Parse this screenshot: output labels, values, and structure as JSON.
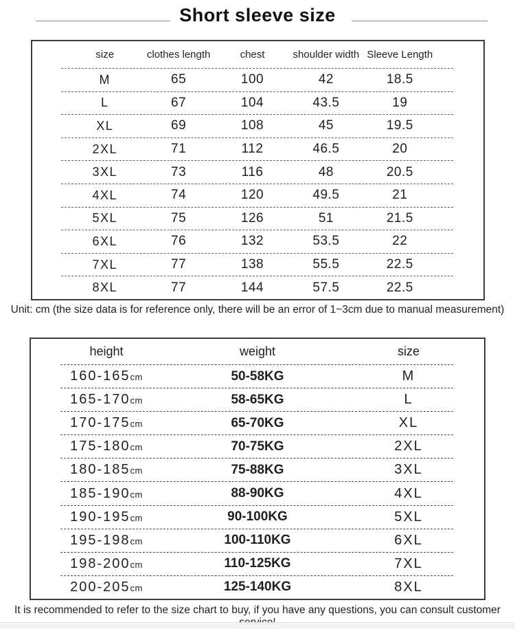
{
  "title": "Short sleeve size",
  "size_table": {
    "columns": [
      "size",
      "clothes length",
      "chest",
      "shoulder width",
      "Sleeve Length"
    ],
    "rows": [
      [
        "M",
        "65",
        "100",
        "42",
        "18.5"
      ],
      [
        "L",
        "67",
        "104",
        "43.5",
        "19"
      ],
      [
        "XL",
        "69",
        "108",
        "45",
        "19.5"
      ],
      [
        "2XL",
        "71",
        "112",
        "46.5",
        "20"
      ],
      [
        "3XL",
        "73",
        "116",
        "48",
        "20.5"
      ],
      [
        "4XL",
        "74",
        "120",
        "49.5",
        "21"
      ],
      [
        "5XL",
        "75",
        "126",
        "51",
        "21.5"
      ],
      [
        "6XL",
        "76",
        "132",
        "53.5",
        "22"
      ],
      [
        "7XL",
        "77",
        "138",
        "55.5",
        "22.5"
      ],
      [
        "8XL",
        "77",
        "144",
        "57.5",
        "22.5"
      ]
    ]
  },
  "unit_note": "Unit: cm (the size data is for reference only, there will be an error of 1~3cm due to manual measurement)",
  "fit_table": {
    "columns": [
      "height",
      "weight",
      "size"
    ],
    "rows": [
      {
        "height": "160-165",
        "height_unit": "cm",
        "weight": "50-58KG",
        "size": "M"
      },
      {
        "height": "165-170",
        "height_unit": "cm",
        "weight": "58-65KG",
        "size": "L"
      },
      {
        "height": "170-175",
        "height_unit": "cm",
        "weight": "65-70KG",
        "size": "XL"
      },
      {
        "height": "175-180",
        "height_unit": "cm",
        "weight": "70-75KG",
        "size": "2XL"
      },
      {
        "height": "180-185",
        "height_unit": "cm",
        "weight": "75-88KG",
        "size": "3XL"
      },
      {
        "height": "185-190",
        "height_unit": "cm",
        "weight": "88-90KG",
        "size": "4XL"
      },
      {
        "height": "190-195",
        "height_unit": "cm",
        "weight": "90-100KG",
        "size": "5XL"
      },
      {
        "height": "195-198",
        "height_unit": "cm",
        "weight": "100-110KG",
        "size": "6XL"
      },
      {
        "height": "198-200",
        "height_unit": "cm",
        "weight": "110-125KG",
        "size": "7XL"
      },
      {
        "height": "200-205",
        "height_unit": "cm",
        "weight": "125-140KG",
        "size": "8XL"
      }
    ]
  },
  "footer_note": "It is recommended to refer to the size chart to buy, if you have any questions, you can consult customer service!",
  "colors": {
    "text": "#1f1f1f",
    "table_border": "#3a3a3a",
    "dash_table1": "#5f5f5f",
    "dash_table2": "#474747",
    "title_line": "#8a8a8a",
    "footer_strip": "#f3f3f3"
  }
}
